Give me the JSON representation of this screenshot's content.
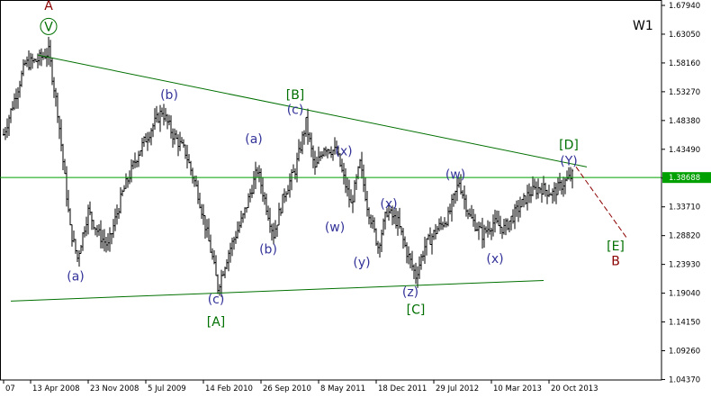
{
  "chart_data": {
    "type": "line",
    "timeframe": "W1",
    "style": "OHLC bars",
    "ylim": [
      1.06,
      1.6794
    ],
    "y_ticks": [
      "1.67940",
      "1.63050",
      "1.58160",
      "1.53270",
      "1.48380",
      "1.43490",
      "1.38600",
      "1.33710",
      "1.28820",
      "1.23930",
      "1.19040",
      "1.14150",
      "1.09260",
      "1.04370"
    ],
    "x_ticks": [
      {
        "label": "07",
        "t": 0
      },
      {
        "label": "13 Apr 2008",
        "t": 15
      },
      {
        "label": "23 Nov 2008",
        "t": 47
      },
      {
        "label": "5 Jul 2009",
        "t": 79
      },
      {
        "label": "14 Feb 2010",
        "t": 111
      },
      {
        "label": "26 Sep 2010",
        "t": 143
      },
      {
        "label": "8 May 2011",
        "t": 175
      },
      {
        "label": "18 Dec 2011",
        "t": 207
      },
      {
        "label": "29 Jul 2012",
        "t": 239
      },
      {
        "label": "10 Mar 2013",
        "t": 271
      },
      {
        "label": "20 Oct 2013",
        "t": 303
      }
    ],
    "price_line": {
      "value": 1.38688,
      "label": "1.38688",
      "color": "#00a000"
    },
    "trendlines": [
      {
        "from": {
          "t": 19,
          "v": 1.595
        },
        "to": {
          "t": 324,
          "v": 1.405
        },
        "color": "#007000"
      },
      {
        "from": {
          "t": 4,
          "v": 1.177
        },
        "to": {
          "t": 300,
          "v": 1.212
        },
        "color": "#007000"
      }
    ],
    "projection": {
      "from": {
        "t": 318,
        "v": 1.405
      },
      "to": {
        "t": 346,
        "v": 1.285
      },
      "color": "#8b0000"
    },
    "anchors": [
      {
        "t": 0,
        "v": 1.46
      },
      {
        "t": 12,
        "v": 1.58
      },
      {
        "t": 18,
        "v": 1.585
      },
      {
        "t": 25,
        "v": 1.6
      },
      {
        "t": 30,
        "v": 1.5
      },
      {
        "t": 37,
        "v": 1.3
      },
      {
        "t": 41,
        "v": 1.25
      },
      {
        "t": 47,
        "v": 1.33
      },
      {
        "t": 53,
        "v": 1.29
      },
      {
        "t": 58,
        "v": 1.27
      },
      {
        "t": 66,
        "v": 1.36
      },
      {
        "t": 75,
        "v": 1.43
      },
      {
        "t": 82,
        "v": 1.47
      },
      {
        "t": 88,
        "v": 1.5
      },
      {
        "t": 94,
        "v": 1.46
      },
      {
        "t": 101,
        "v": 1.43
      },
      {
        "t": 108,
        "v": 1.36
      },
      {
        "t": 116,
        "v": 1.25
      },
      {
        "t": 119,
        "v": 1.2
      },
      {
        "t": 125,
        "v": 1.26
      },
      {
        "t": 133,
        "v": 1.32
      },
      {
        "t": 141,
        "v": 1.4
      },
      {
        "t": 145,
        "v": 1.35
      },
      {
        "t": 150,
        "v": 1.29
      },
      {
        "t": 156,
        "v": 1.36
      },
      {
        "t": 162,
        "v": 1.4
      },
      {
        "t": 168,
        "v": 1.48
      },
      {
        "t": 173,
        "v": 1.4
      },
      {
        "t": 178,
        "v": 1.44
      },
      {
        "t": 185,
        "v": 1.43
      },
      {
        "t": 193,
        "v": 1.34
      },
      {
        "t": 198,
        "v": 1.41
      },
      {
        "t": 202,
        "v": 1.34
      },
      {
        "t": 208,
        "v": 1.27
      },
      {
        "t": 213,
        "v": 1.33
      },
      {
        "t": 219,
        "v": 1.31
      },
      {
        "t": 224,
        "v": 1.26
      },
      {
        "t": 229,
        "v": 1.22
      },
      {
        "t": 234,
        "v": 1.27
      },
      {
        "t": 241,
        "v": 1.3
      },
      {
        "t": 247,
        "v": 1.32
      },
      {
        "t": 253,
        "v": 1.38
      },
      {
        "t": 259,
        "v": 1.32
      },
      {
        "t": 266,
        "v": 1.29
      },
      {
        "t": 272,
        "v": 1.31
      },
      {
        "t": 278,
        "v": 1.3
      },
      {
        "t": 285,
        "v": 1.33
      },
      {
        "t": 292,
        "v": 1.36
      },
      {
        "t": 298,
        "v": 1.37
      },
      {
        "t": 305,
        "v": 1.36
      },
      {
        "t": 312,
        "v": 1.38
      },
      {
        "t": 316,
        "v": 1.39
      }
    ],
    "wave_labels": [
      {
        "text": "A",
        "t": 25,
        "v": 1.672,
        "color": "#8b0000"
      },
      {
        "text": "V",
        "t": 25,
        "v": 1.636,
        "color": "#007000",
        "circled": true
      },
      {
        "text": "(a)",
        "t": 40,
        "v": 1.212,
        "color": "#333399"
      },
      {
        "text": "(b)",
        "t": 92,
        "v": 1.52,
        "color": "#333399"
      },
      {
        "text": "(c)",
        "t": 118,
        "v": 1.173,
        "color": "#333399"
      },
      {
        "text": "[A]",
        "t": 118,
        "v": 1.135,
        "color": "#007000"
      },
      {
        "text": "(a)",
        "t": 139,
        "v": 1.445,
        "color": "#333399"
      },
      {
        "text": "(b)",
        "t": 147,
        "v": 1.258,
        "color": "#333399"
      },
      {
        "text": "[B]",
        "t": 162,
        "v": 1.52,
        "color": "#007000"
      },
      {
        "text": "(c)",
        "t": 162,
        "v": 1.495,
        "color": "#333399"
      },
      {
        "text": "(x)",
        "t": 189,
        "v": 1.425,
        "color": "#333399"
      },
      {
        "text": "(w)",
        "t": 184,
        "v": 1.295,
        "color": "#333399"
      },
      {
        "text": "(y)",
        "t": 199,
        "v": 1.236,
        "color": "#333399"
      },
      {
        "text": "(x)",
        "t": 214,
        "v": 1.335,
        "color": "#333399"
      },
      {
        "text": "(z)",
        "t": 226,
        "v": 1.185,
        "color": "#333399"
      },
      {
        "text": "[C]",
        "t": 229,
        "v": 1.155,
        "color": "#007000"
      },
      {
        "text": "(w)",
        "t": 251,
        "v": 1.385,
        "color": "#333399"
      },
      {
        "text": "(x)",
        "t": 273,
        "v": 1.242,
        "color": "#333399"
      },
      {
        "text": "[D]",
        "t": 314,
        "v": 1.435,
        "color": "#007000"
      },
      {
        "text": "(Y)",
        "t": 314,
        "v": 1.408,
        "color": "#333399"
      },
      {
        "text": "[E]",
        "t": 340,
        "v": 1.263,
        "color": "#007000"
      },
      {
        "text": "B",
        "t": 340,
        "v": 1.238,
        "color": "#8b0000"
      }
    ],
    "colors": {
      "bars": "#000000",
      "axis": "#000000",
      "price_box": "#00a000"
    }
  }
}
